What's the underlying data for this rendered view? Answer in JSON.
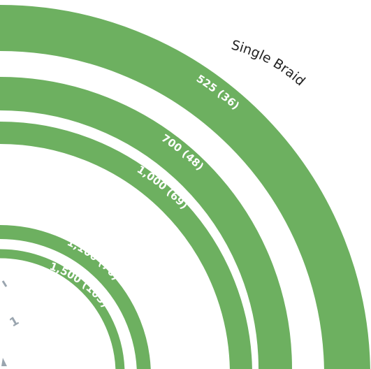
{
  "title": "Single Braid",
  "stray_label": "1",
  "colors": {
    "ring": "#6db060",
    "title": "#222222",
    "label": "#ffffff",
    "stray": "#9aa5af"
  },
  "rings": [
    {
      "label": "525 (36)"
    },
    {
      "label": "700 (48)"
    },
    {
      "label": "1,000 (69)"
    },
    {
      "label": "1,100 (76)"
    },
    {
      "label": "1,500 (103)"
    }
  ]
}
